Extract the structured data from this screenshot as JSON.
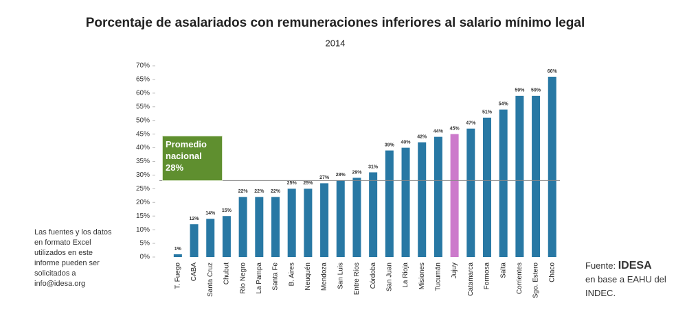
{
  "chart_data": {
    "type": "bar",
    "title": "Porcentaje de asalariados con remuneraciones inferiores al salario mínimo legal",
    "subtitle": "2014",
    "categories": [
      "T. Fuego",
      "CABA",
      "Santa Cruz",
      "Chubut",
      "Río Negro",
      "La Pampa",
      "Santa Fe",
      "B. Aires",
      "Neuquén",
      "Mendoza",
      "San Luis",
      "Entre Ríos",
      "Córdoba",
      "San Juan",
      "La Rioja",
      "Misiones",
      "Tucumán",
      "Jujuy",
      "Catamarca",
      "Formosa",
      "Salta",
      "Corrientes",
      "Sgo. Estero",
      "Chaco"
    ],
    "values": [
      1,
      12,
      14,
      15,
      22,
      22,
      22,
      25,
      25,
      27,
      28,
      29,
      31,
      39,
      40,
      42,
      44,
      45,
      47,
      51,
      54,
      59,
      59,
      66
    ],
    "value_labels": [
      "1%",
      "12%",
      "14%",
      "15%",
      "22%",
      "22%",
      "22%",
      "25%",
      "25%",
      "27%",
      "28%",
      "29%",
      "31%",
      "39%",
      "40%",
      "42%",
      "44%",
      "45%",
      "47%",
      "51%",
      "54%",
      "59%",
      "59%",
      "66%"
    ],
    "colors": [
      "#2878a4",
      "#2878a4",
      "#2878a4",
      "#2878a4",
      "#2878a4",
      "#2878a4",
      "#2878a4",
      "#2878a4",
      "#2878a4",
      "#2878a4",
      "#2878a4",
      "#2878a4",
      "#2878a4",
      "#2878a4",
      "#2878a4",
      "#2878a4",
      "#2878a4",
      "#cc7acb",
      "#2878a4",
      "#2878a4",
      "#2878a4",
      "#2878a4",
      "#2878a4",
      "#2878a4"
    ],
    "ylim": [
      0,
      70
    ],
    "yticks": [
      {
        "value": 0,
        "label": "0%"
      },
      {
        "value": 5,
        "label": "5%"
      },
      {
        "value": 10,
        "label": "10%"
      },
      {
        "value": 15,
        "label": "15%"
      },
      {
        "value": 20,
        "label": "20%"
      },
      {
        "value": 25,
        "label": "25%"
      },
      {
        "value": 30,
        "label": "30%"
      },
      {
        "value": 35,
        "label": "35%"
      },
      {
        "value": 40,
        "label": "40%"
      },
      {
        "value": 45,
        "label": "45%"
      },
      {
        "value": 50,
        "label": "50%"
      },
      {
        "value": 55,
        "label": "55%"
      },
      {
        "value": 60,
        "label": "60%"
      },
      {
        "value": 65,
        "label": "65%"
      },
      {
        "value": 70,
        "label": "70%"
      }
    ],
    "grid": false,
    "average": {
      "value": 28,
      "label": "Promedio nacional 28%"
    },
    "note": "Las fuentes y los datos en formato Excel utilizados en este informe pueden ser solicitados a info@idesa.org",
    "source": {
      "prefix": "Fuente:",
      "name": "IDESA",
      "text": "en base a EAHU del INDEC."
    }
  }
}
